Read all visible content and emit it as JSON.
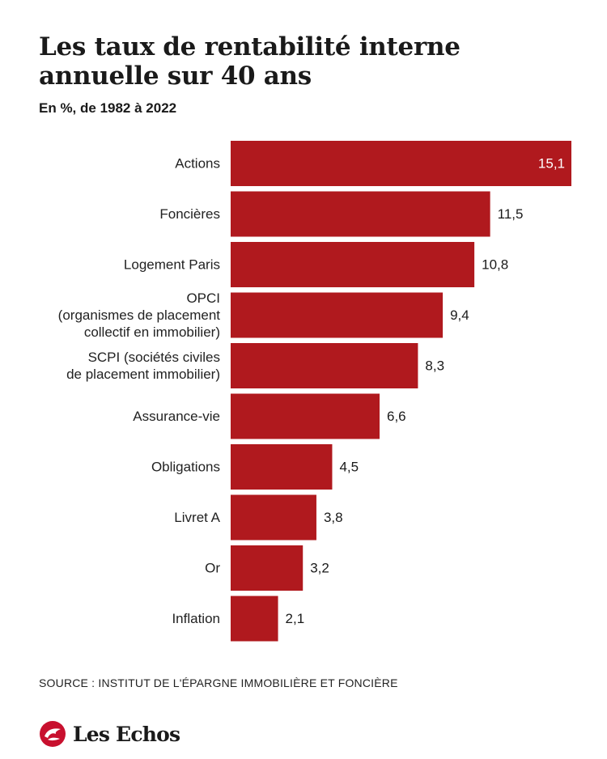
{
  "title": "Les taux de rentabilité interne annuelle sur 40 ans",
  "subtitle": "En %, de 1982 à 2022",
  "source": "SOURCE : INSTITUT DE L'ÉPARGNE IMMOBILIÈRE ET FONCIÈRE",
  "brand": {
    "name": "Les Echos",
    "icon": "les-echos-logo-icon"
  },
  "colors": {
    "bar": "#b0191e",
    "inside_label": "#ffffff",
    "outside_label": "#1a1a1a"
  },
  "chart_data": {
    "type": "bar",
    "orientation": "horizontal",
    "categories": [
      [
        "Actions"
      ],
      [
        "Foncières"
      ],
      [
        "Logement Paris"
      ],
      [
        "OPCI",
        "(organismes de placement",
        "collectif en immobilier)"
      ],
      [
        "SCPI (sociétés civiles",
        "de placement immobilier)"
      ],
      [
        "Assurance-vie"
      ],
      [
        "Obligations"
      ],
      [
        "Livret A"
      ],
      [
        "Or"
      ],
      [
        "Inflation"
      ]
    ],
    "values": [
      15.1,
      11.5,
      10.8,
      9.4,
      8.3,
      6.6,
      4.5,
      3.8,
      3.2,
      2.1
    ],
    "value_labels": [
      "15,1",
      "11,5",
      "10,8",
      "9,4",
      "8,3",
      "6,6",
      "4,5",
      "3,8",
      "3,2",
      "2,1"
    ],
    "xlim": [
      0,
      15.1
    ],
    "grid": false,
    "legend": "none"
  }
}
